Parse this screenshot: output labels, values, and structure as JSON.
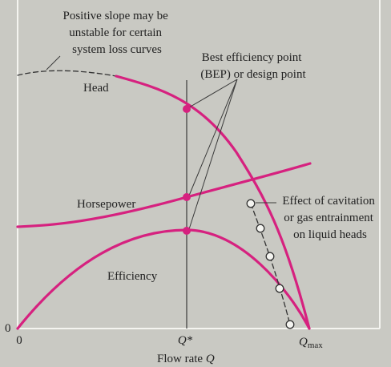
{
  "colors": {
    "background": "#c9c9c3",
    "frame": "#f4f4f0",
    "curve": "#d6217f",
    "line": "#3a3a3a"
  },
  "annotations": {
    "positive_slope": [
      "Positive slope may be",
      "unstable for certain",
      "system loss curves"
    ],
    "bep": [
      "Best efficiency point",
      "(BEP) or design point"
    ],
    "cavitation": [
      "Effect of cavitation",
      "or gas entrainment",
      "on liquid heads"
    ]
  },
  "curve_labels": {
    "head": "Head",
    "horsepower": "Horsepower",
    "efficiency": "Efficiency"
  },
  "axes": {
    "origin_x": "0",
    "origin_y": "0",
    "q_star": "Q*",
    "q_max": "Q",
    "q_max_sub": "max",
    "xlabel": "Flow rate ",
    "xlabel_symbol": "Q"
  }
}
